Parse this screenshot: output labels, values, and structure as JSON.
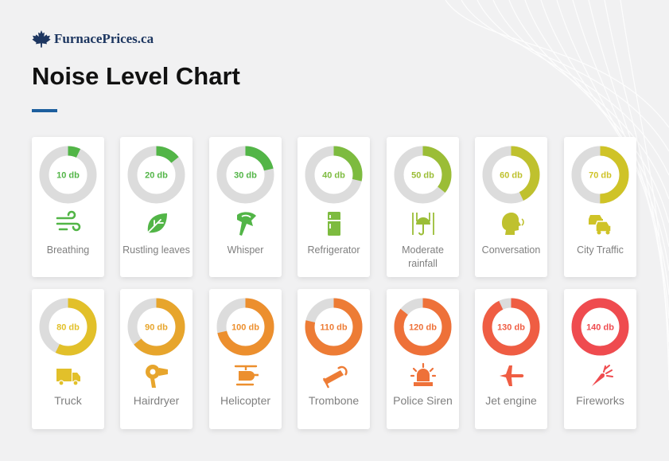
{
  "brand": {
    "name": "FurnacePrices.ca",
    "icon": "maple-leaf-icon"
  },
  "title": "Noise Level Chart",
  "chart_data": {
    "type": "donut-grid",
    "title": "Noise Level Chart",
    "unit": "db",
    "scale_max": 140,
    "ring_color": "#dcdcdc",
    "items": [
      {
        "name": "Breathing",
        "value": 10,
        "value_label": "10 db",
        "color": "#52b547",
        "icon": "wind-icon"
      },
      {
        "name": "Rustling leaves",
        "value": 20,
        "value_label": "20 db",
        "color": "#52b547",
        "icon": "leaf-icon"
      },
      {
        "name": "Whisper",
        "value": 30,
        "value_label": "30 db",
        "color": "#52b547",
        "icon": "whisper-icon"
      },
      {
        "name": "Refrigerator",
        "value": 40,
        "value_label": "40 db",
        "color": "#7dbb3f",
        "icon": "refrigerator-icon"
      },
      {
        "name": "Moderate rainfall",
        "value": 50,
        "value_label": "50 db",
        "color": "#9bbd36",
        "icon": "rain-umbrella-icon"
      },
      {
        "name": "Conversation",
        "value": 60,
        "value_label": "60 db",
        "color": "#bfc12e",
        "icon": "speaking-head-icon"
      },
      {
        "name": "City Traffic",
        "value": 70,
        "value_label": "70 db",
        "color": "#cfc327",
        "icon": "cars-icon"
      },
      {
        "name": "Truck",
        "value": 80,
        "value_label": "80 db",
        "color": "#e2c02a",
        "icon": "truck-icon"
      },
      {
        "name": "Hairdryer",
        "value": 90,
        "value_label": "90 db",
        "color": "#e7a52c",
        "icon": "hairdryer-icon"
      },
      {
        "name": "Helicopter",
        "value": 100,
        "value_label": "100 db",
        "color": "#ec8f2e",
        "icon": "helicopter-icon"
      },
      {
        "name": "Trombone",
        "value": 110,
        "value_label": "110 db",
        "color": "#ed7c35",
        "icon": "trombone-icon"
      },
      {
        "name": "Police Siren",
        "value": 120,
        "value_label": "120 db",
        "color": "#ee7139",
        "icon": "siren-icon"
      },
      {
        "name": "Jet engine",
        "value": 130,
        "value_label": "130 db",
        "color": "#ef5d43",
        "icon": "jet-icon"
      },
      {
        "name": "Fireworks",
        "value": 140,
        "value_label": "140 db",
        "color": "#ef4b4f",
        "icon": "firework-icon"
      }
    ]
  }
}
